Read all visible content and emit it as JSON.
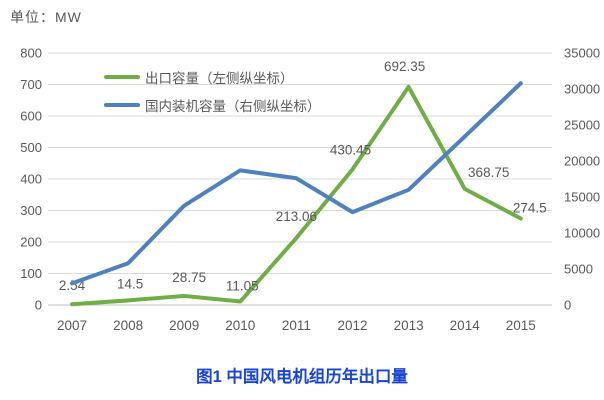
{
  "unit_label": "单位：MW",
  "caption": "图1 中国风电机组历年出口量",
  "colors": {
    "export_line": "#70AD47",
    "domestic_line": "#4E81BD",
    "gridline": "#d9d9d9",
    "axis_line": "#bfbfbf",
    "axis_text": "#595959",
    "data_label_text": "#595959",
    "caption_text": "#1843d9"
  },
  "chart_data": {
    "type": "line",
    "title": "图1 中国风电机组历年出口量",
    "categories": [
      "2007",
      "2008",
      "2009",
      "2010",
      "2011",
      "2012",
      "2013",
      "2014",
      "2015"
    ],
    "left_axis": {
      "min": 0,
      "max": 800,
      "step": 100,
      "ticks": [
        "800",
        "700",
        "600",
        "500",
        "400",
        "300",
        "200",
        "100",
        "0"
      ]
    },
    "right_axis": {
      "min": 0,
      "max": 35000,
      "step": 5000,
      "ticks": [
        "35000",
        "30000",
        "25000",
        "20000",
        "15000",
        "10000",
        "5000",
        "0"
      ]
    },
    "grid": "horizontal",
    "legend_position": "top-left-inside",
    "series": [
      {
        "name": "出口容量（左侧纵坐标）",
        "axis": "left",
        "color": "#70AD47",
        "values": [
          2.54,
          14.5,
          28.75,
          11.05,
          213.06,
          430.45,
          692.35,
          368.75,
          274.5
        ],
        "data_labels": [
          "2.54",
          "14.5",
          "28.75",
          "11.05",
          "213.06",
          "430.45",
          "692.35",
          "368.75",
          "274.5"
        ],
        "label_offsets": [
          [
            0,
            -18
          ],
          [
            2,
            -16
          ],
          [
            5,
            -18
          ],
          [
            2,
            -15
          ],
          [
            0,
            -21
          ],
          [
            -2,
            -19
          ],
          [
            -4,
            -20
          ],
          [
            24,
            -16
          ],
          [
            9,
            -10
          ]
        ]
      },
      {
        "name": "国内装机容量（右侧纵坐标）",
        "axis": "right",
        "color": "#4E81BD",
        "values": [
          3000,
          5800,
          13800,
          18700,
          17600,
          12900,
          16000,
          23400,
          30800
        ],
        "data_labels": null
      }
    ]
  }
}
